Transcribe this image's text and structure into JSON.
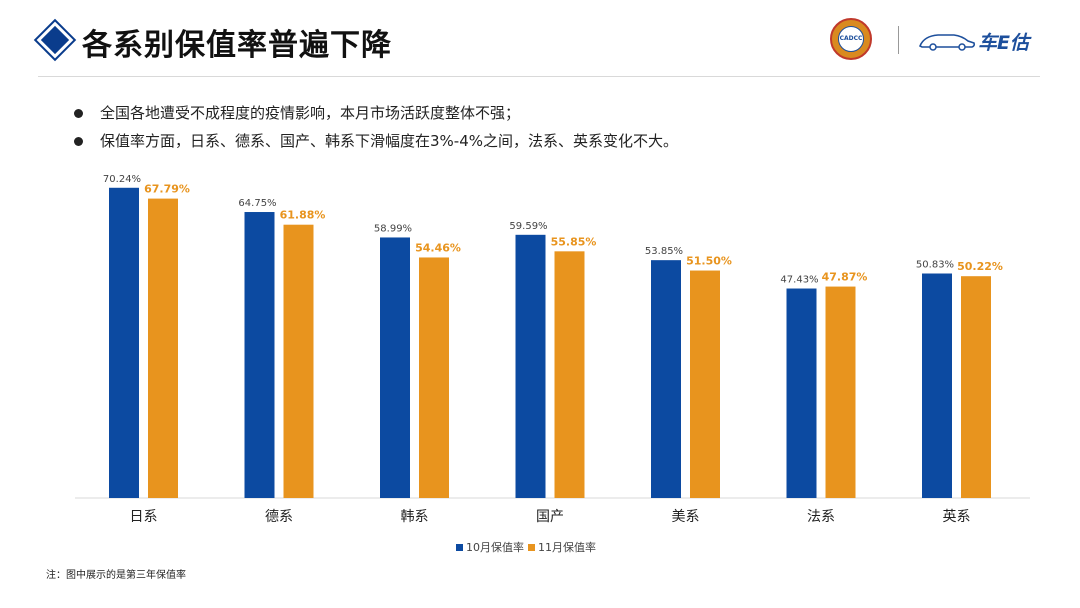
{
  "header": {
    "title": "各系别保值率普遍下降",
    "logo_left_text": "CADCC",
    "brand_name": "车E估"
  },
  "bullets": [
    "全国各地遭受不成程度的疫情影响，本月市场活跃度整体不强；",
    "保值率方面，日系、德系、国产、韩系下滑幅度在3%-4%之间，法系、英系变化不大。"
  ],
  "footnote": "注：图中展示的是第三年保值率",
  "colors": {
    "accent": "#0a3c8c",
    "series_oct": "#0c4aa1",
    "series_nov": "#e8941e"
  },
  "chart_data": {
    "type": "bar",
    "categories": [
      "日系",
      "德系",
      "韩系",
      "国产",
      "美系",
      "法系",
      "英系"
    ],
    "series": [
      {
        "name": "10月保值率",
        "values": [
          70.24,
          64.75,
          58.99,
          59.59,
          53.85,
          47.43,
          50.83
        ],
        "labels": [
          "70.24%",
          "64.75%",
          "58.99%",
          "59.59%",
          "53.85%",
          "47.43%",
          "50.83%"
        ]
      },
      {
        "name": "11月保值率",
        "values": [
          67.79,
          61.88,
          54.46,
          55.85,
          51.5,
          47.87,
          50.22
        ],
        "labels": [
          "67.79%",
          "61.88%",
          "54.46%",
          "55.85%",
          "51.50%",
          "47.87%",
          "50.22%"
        ]
      }
    ],
    "ylim": [
      0,
      72
    ],
    "grid": false,
    "legend_position": "bottom"
  }
}
